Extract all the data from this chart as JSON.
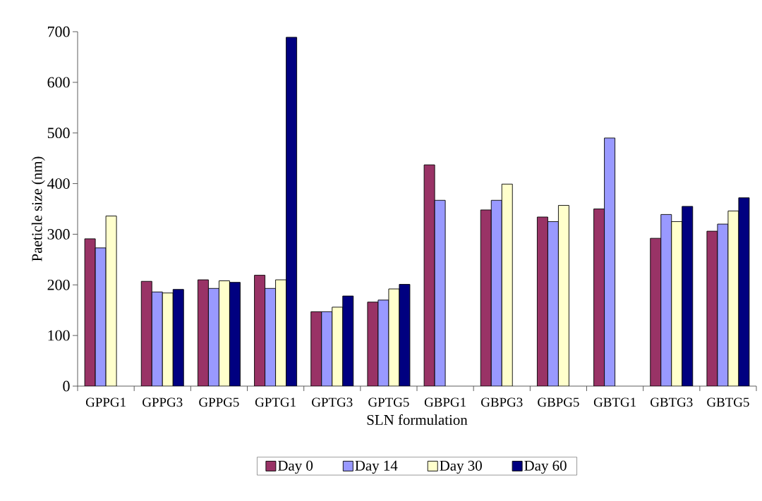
{
  "chart_data": {
    "type": "bar",
    "xlabel": "SLN formulation",
    "ylabel": "Paeticle size (nm)",
    "categories": [
      "GPPG1",
      "GPPG3",
      "GPPG5",
      "GPTG1",
      "GPTG3",
      "GPTG5",
      "GBPG1",
      "GBPG3",
      "GBPG5",
      "GBTG1",
      "GBTG3",
      "GBTG5"
    ],
    "series": [
      {
        "name": "Day 0",
        "color": "#993366",
        "values": [
          291,
          207,
          210,
          219,
          147,
          166,
          437,
          348,
          334,
          350,
          292,
          306
        ]
      },
      {
        "name": "Day 14",
        "color": "#9999ff",
        "values": [
          273,
          186,
          193,
          193,
          147,
          170,
          367,
          367,
          325,
          490,
          339,
          320
        ]
      },
      {
        "name": "Day 30",
        "color": "#ffffcc",
        "values": [
          336,
          184,
          208,
          210,
          156,
          192,
          null,
          399,
          357,
          null,
          325,
          346
        ]
      },
      {
        "name": "Day 60",
        "color": "#000080",
        "values": [
          null,
          191,
          205,
          689,
          178,
          201,
          null,
          null,
          null,
          null,
          355,
          372
        ]
      }
    ],
    "ylim": [
      0,
      700
    ],
    "yticks": [
      0,
      100,
      200,
      300,
      400,
      500,
      600,
      700
    ],
    "grid": false,
    "legend": "bottom"
  }
}
